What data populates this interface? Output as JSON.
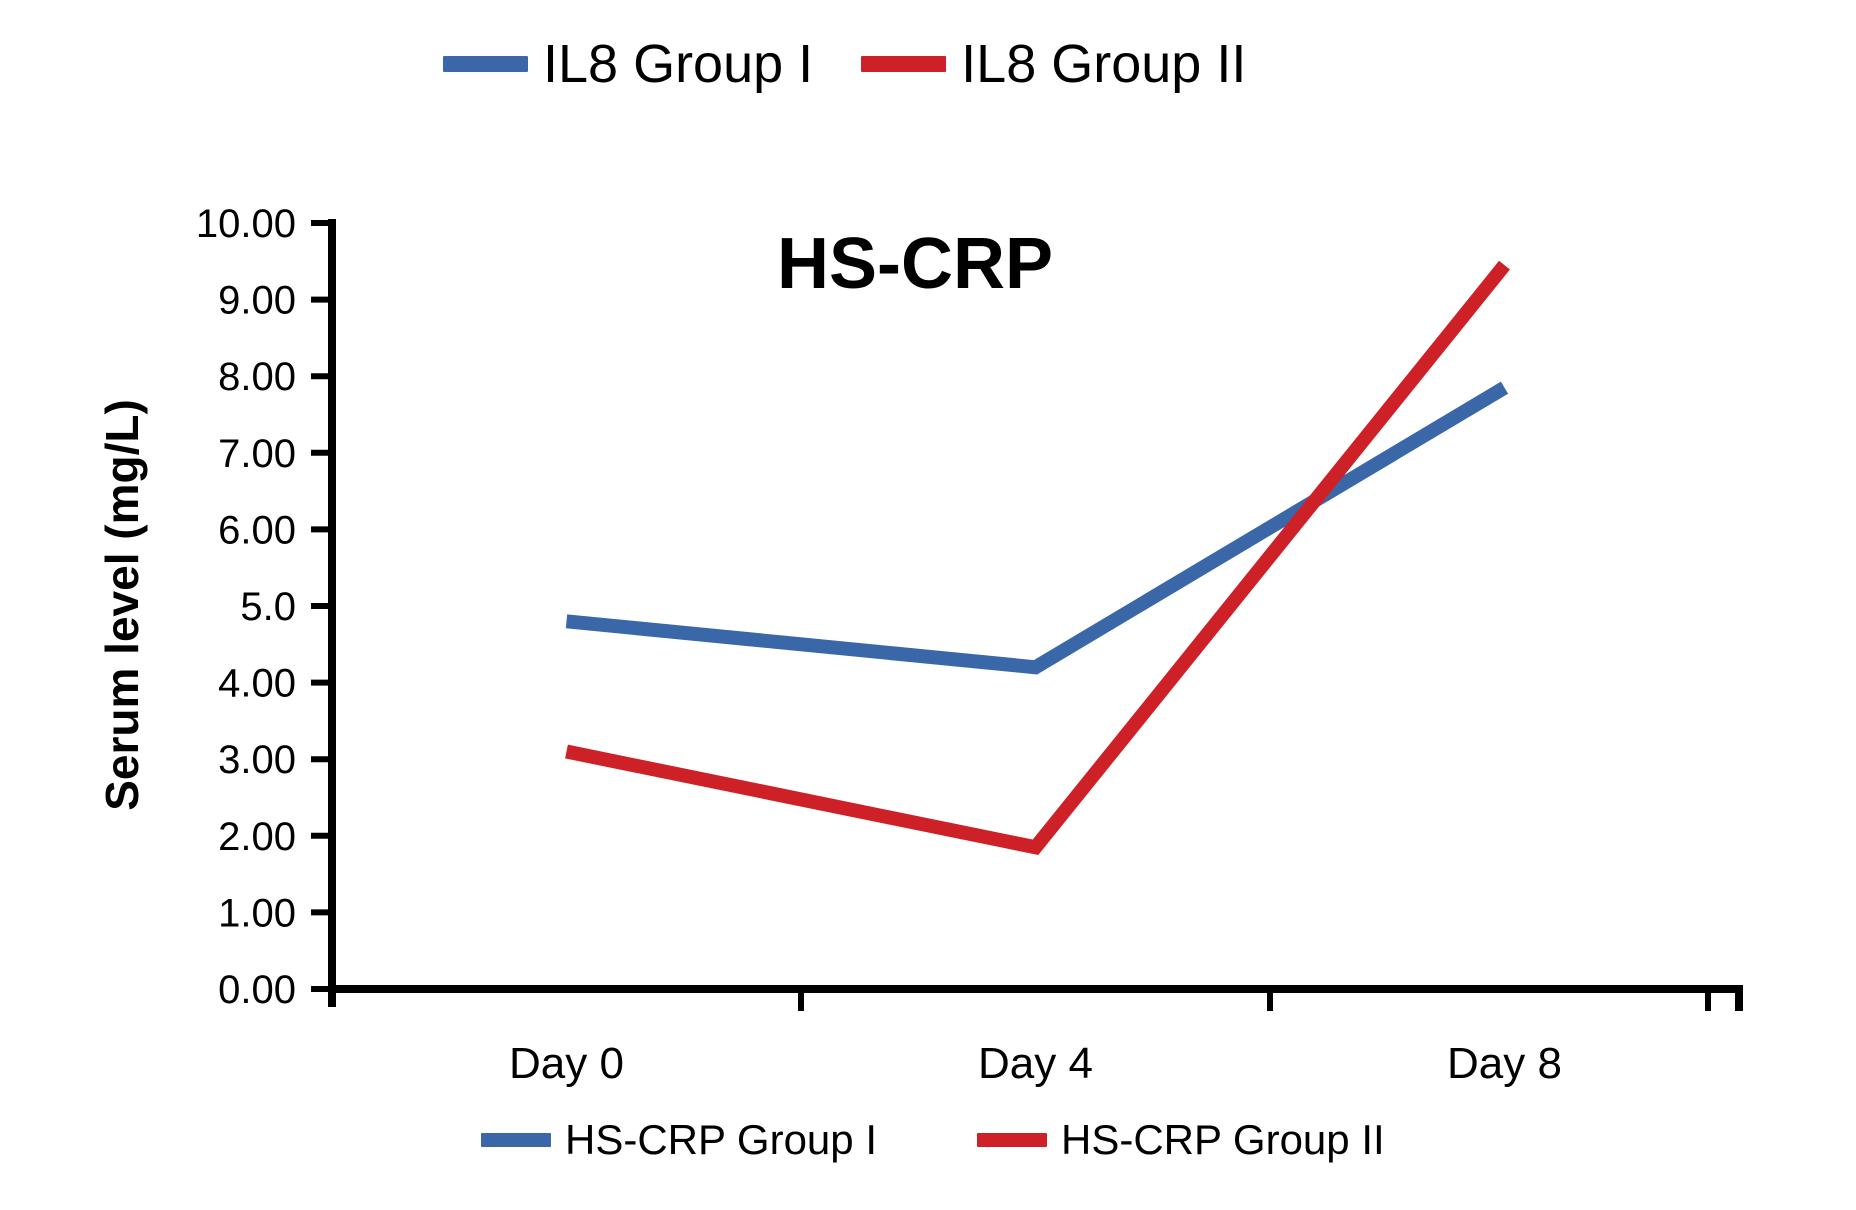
{
  "legend_top": {
    "items": [
      {
        "label": "IL8 Group I",
        "color": "#3A67A8"
      },
      {
        "label": "IL8 Group II",
        "color": "#CE2027"
      }
    ]
  },
  "legend_bottom": {
    "items": [
      {
        "label": "HS-CRP Group I",
        "color": "#3A67A8"
      },
      {
        "label": "HS-CRP Group II",
        "color": "#CE2027"
      }
    ]
  },
  "chart_data": {
    "type": "line",
    "title": "HS-CRP",
    "xlabel": "",
    "ylabel": "Serum level (mg/L)",
    "categories": [
      "Day 0",
      "Day 4",
      "Day 8"
    ],
    "series": [
      {
        "name": "HS-CRP Group I",
        "color": "#3A67A8",
        "values": [
          4.8,
          4.2,
          7.85
        ]
      },
      {
        "name": "HS-CRP Group II",
        "color": "#CE2027",
        "values": [
          3.1,
          1.85,
          9.45
        ]
      }
    ],
    "ylim": [
      0,
      10
    ],
    "y_tick_step": 1,
    "y_tick_labels": [
      "0.00",
      "1.00",
      "2.00",
      "3.00",
      "4.00",
      "5.0",
      "6.00",
      "7.00",
      "8.00",
      "9.00",
      "10.00"
    ],
    "grid": false,
    "legend_position": "top-and-bottom",
    "axis_color": "#000000"
  }
}
